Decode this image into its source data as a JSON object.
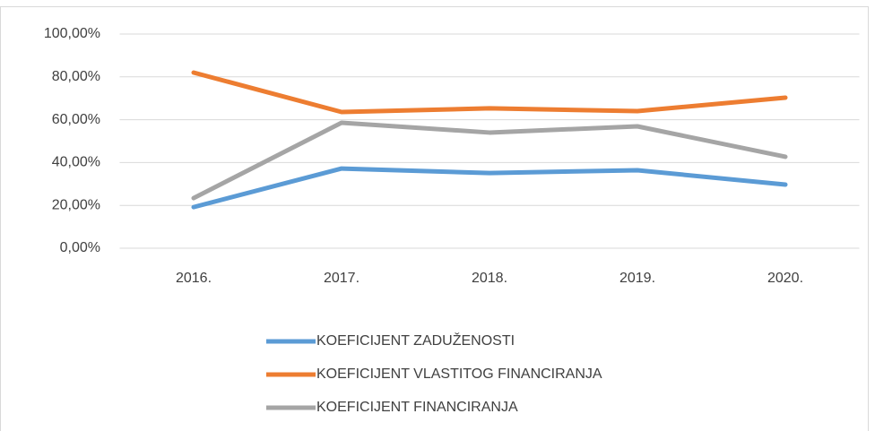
{
  "chart_data": {
    "type": "line",
    "categories": [
      "2016.",
      "2017.",
      "2018.",
      "2019.",
      "2020."
    ],
    "series": [
      {
        "name": "KOEFICIJENT ZADUŽENOSTI",
        "color": "#5b9bd5",
        "values": [
          19.2,
          37.2,
          35.1,
          36.4,
          29.7
        ]
      },
      {
        "name": "KOEFICIJENT VLASTITOG FINANCIRANJA",
        "color": "#ed7d31",
        "values": [
          82.0,
          63.6,
          65.3,
          64.0,
          70.3
        ]
      },
      {
        "name": "KOEFICIJENT FINANCIRANJA",
        "color": "#a5a5a5",
        "values": [
          23.4,
          58.6,
          54.0,
          56.9,
          42.7
        ]
      }
    ],
    "ylim": [
      0,
      100
    ],
    "yticks": [
      {
        "value": 0,
        "label": "0,00%"
      },
      {
        "value": 20,
        "label": "20,00%"
      },
      {
        "value": 40,
        "label": "40,00%"
      },
      {
        "value": 60,
        "label": "60,00%"
      },
      {
        "value": 80,
        "label": "80,00%"
      },
      {
        "value": 100,
        "label": "100,00%"
      }
    ],
    "grid": true,
    "legend": "bottom"
  }
}
